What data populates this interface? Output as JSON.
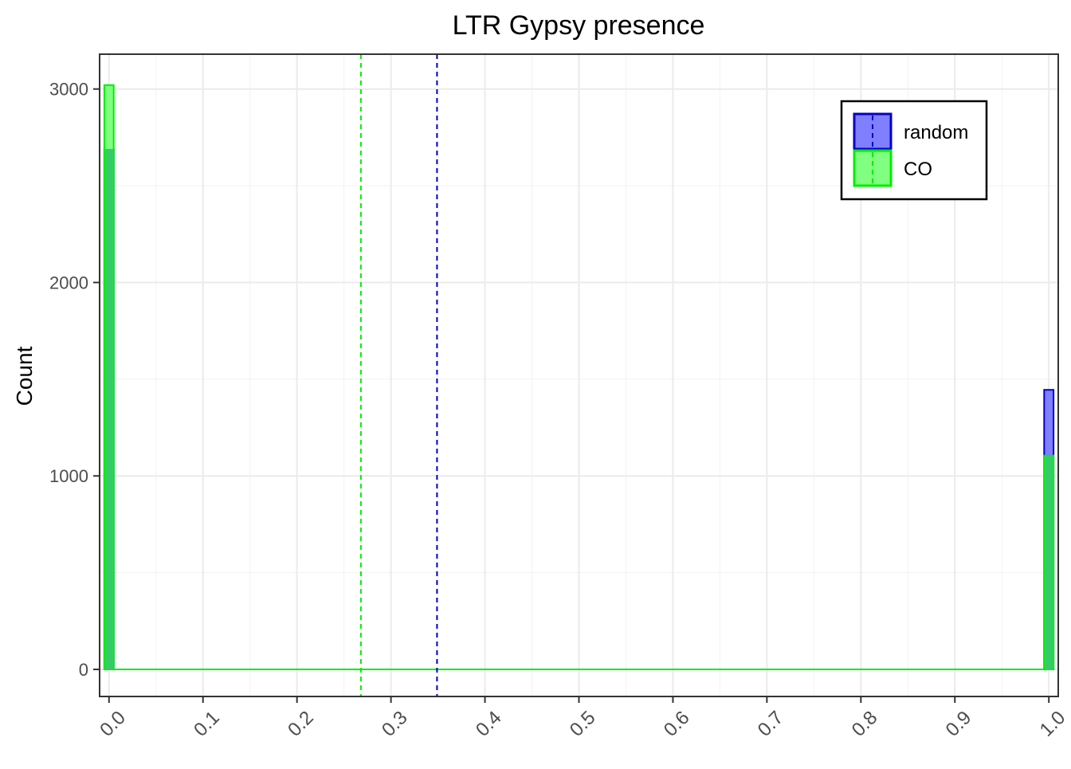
{
  "chart_data": {
    "type": "bar",
    "title": "LTR Gypsy presence",
    "xlabel": "",
    "ylabel": "Count",
    "xlim": [
      -0.01,
      1.01
    ],
    "ylim": [
      -140,
      3180
    ],
    "x_ticks": [
      "0.0",
      "0.1",
      "0.2",
      "0.3",
      "0.4",
      "0.5",
      "0.6",
      "0.7",
      "0.8",
      "0.9",
      "1.0"
    ],
    "y_ticks": [
      "0",
      "1000",
      "2000",
      "3000"
    ],
    "grid": true,
    "legend_position": "top-right",
    "series": [
      {
        "name": "random",
        "fill": "#7f7fff",
        "stroke": "#0000cc",
        "x": [
          0.0,
          1.0
        ],
        "values": [
          2690,
          1445
        ],
        "mean": 0.349
      },
      {
        "name": "CO",
        "fill": "#80ff80",
        "stroke": "#00ee00",
        "x": [
          0.0,
          1.0
        ],
        "values": [
          3020,
          1105
        ],
        "mean": 0.268
      }
    ],
    "overlap_fill": "#33cc66"
  }
}
